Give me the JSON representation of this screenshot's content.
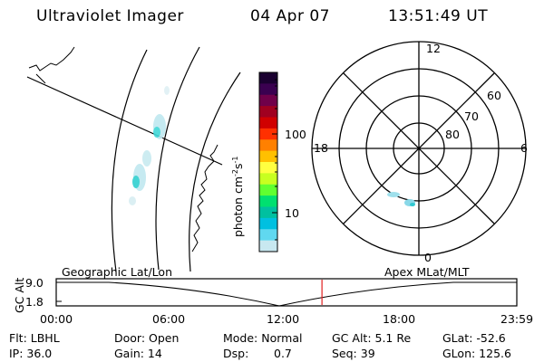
{
  "header": {
    "title": "Ultraviolet Imager",
    "date": "04 Apr 07",
    "time": "13:51:49 UT"
  },
  "colorbar": {
    "label": "photon cm",
    "label_exp1": "-2",
    "label_mid": "s",
    "label_exp2": "-1",
    "tick_100": "100",
    "tick_10": "10",
    "colors": [
      "#1a0030",
      "#3a0050",
      "#70004a",
      "#a00020",
      "#d00000",
      "#ff3000",
      "#ff8000",
      "#ffc000",
      "#ffff40",
      "#c8ff20",
      "#60ff30",
      "#00e070",
      "#00c0a0",
      "#00c0e0",
      "#60d8f0",
      "#c8e8f0"
    ]
  },
  "geo_map": {
    "label": "Geographic Lat/Lon"
  },
  "polar": {
    "label": "Apex MLat/MLT",
    "mlt_top": "12",
    "mlt_left": "18",
    "mlt_right": "6",
    "mlt_bottom": "0",
    "lat_60": "60",
    "lat_70": "70",
    "lat_80": "80"
  },
  "timeline": {
    "ylabel": "GC Alt",
    "ytick_top": "9.0",
    "ytick_bottom": "1.8",
    "xticks": [
      "00:00",
      "06:00",
      "12:00",
      "18:00",
      "23:59"
    ],
    "current_time_fraction": 0.577,
    "marker_color": "#e02020"
  },
  "footer": {
    "flt": "Flt: LBHL",
    "door": "Door: Open",
    "mode": "Mode: Normal",
    "gc_alt": "GC Alt: 5.1 Re",
    "glat": "GLat: -52.6",
    "ip": "IP: 36.0",
    "gain": "Gain: 14",
    "dsp_label": "Dsp:",
    "dsp_value": "0.7",
    "seq": "Seq: 39",
    "glon": "GLon: 125.6"
  }
}
